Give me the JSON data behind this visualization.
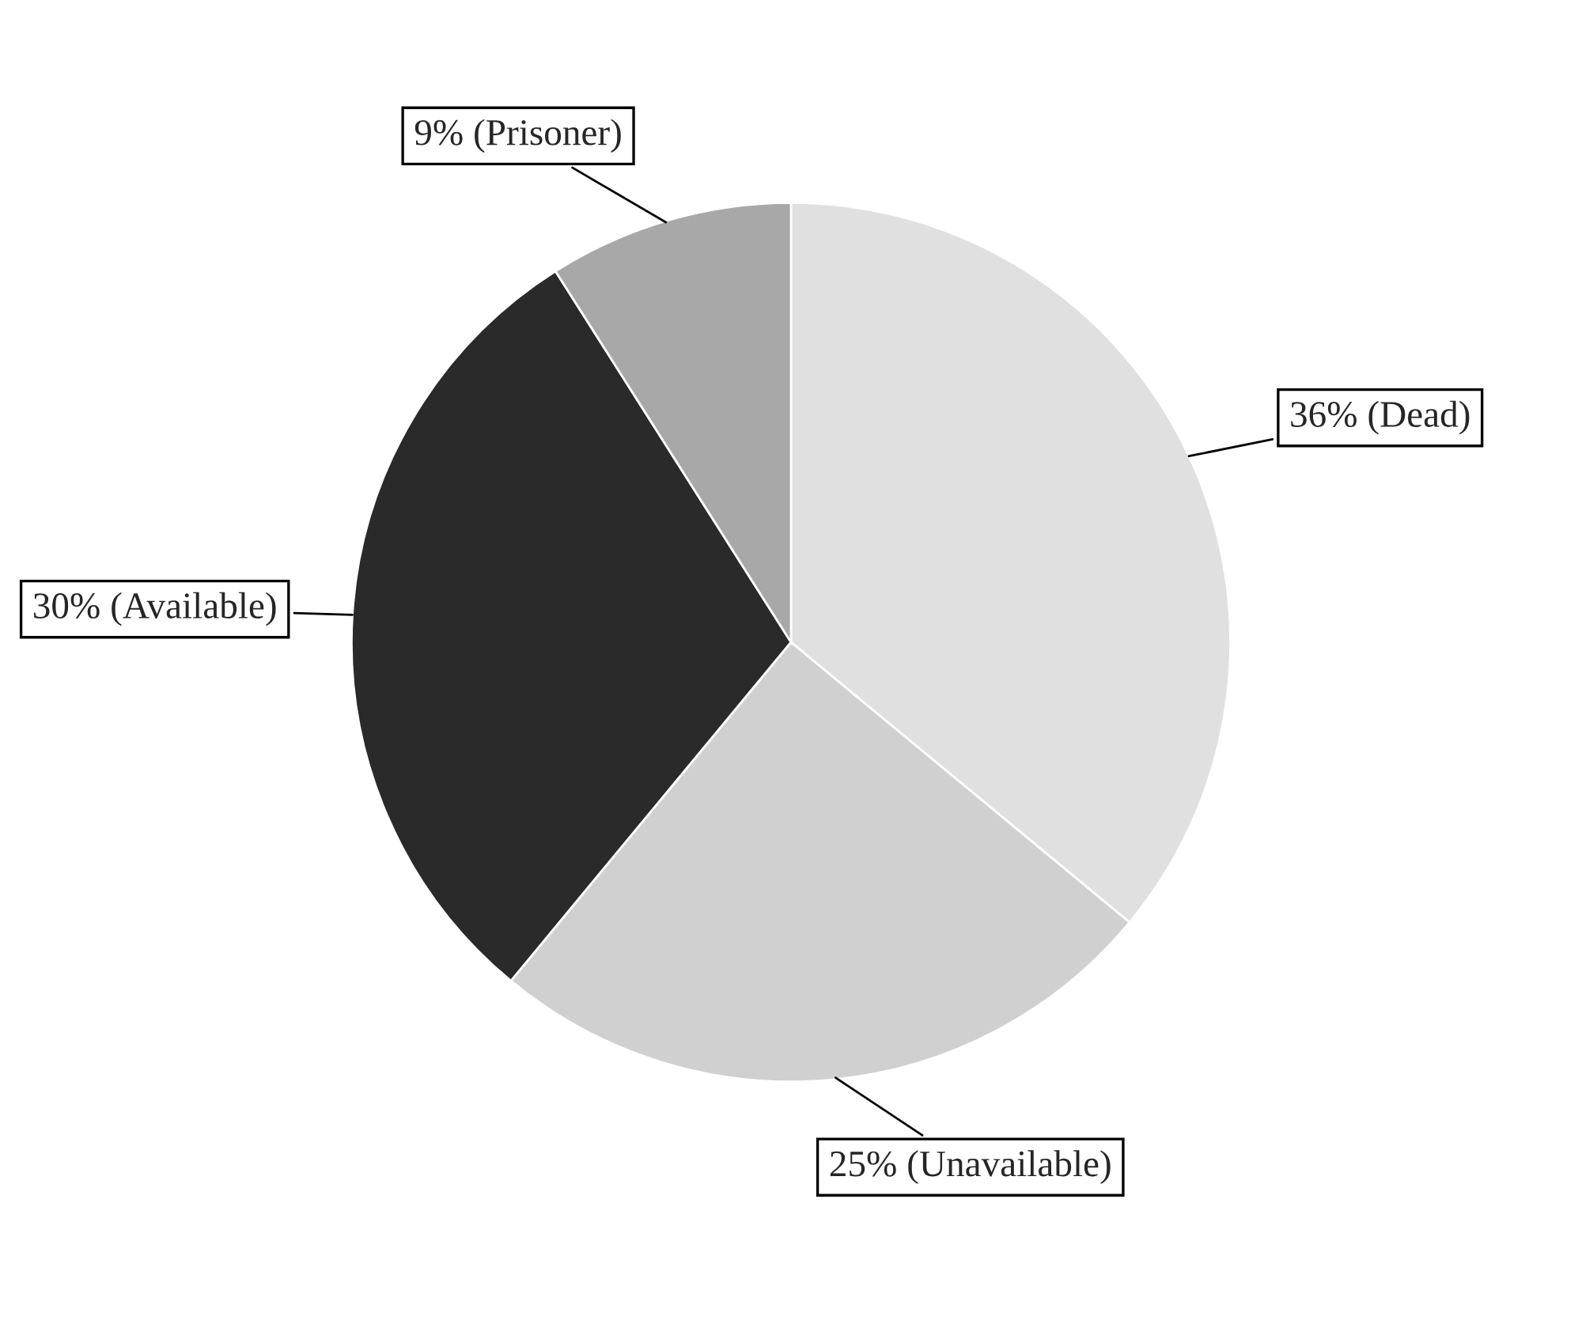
{
  "chart_data": {
    "type": "pie",
    "categories": [
      "(Dead)",
      "(Unavailable)",
      "(Available)",
      "(Prisoner)"
    ],
    "values": [
      36,
      25,
      30,
      9
    ],
    "value_labels": [
      "36%",
      "25%",
      "30%",
      "9%"
    ],
    "colors": [
      "#e0e0e0",
      "#d0d0d0",
      "#2a2a2a",
      "#a8a8a8"
    ]
  }
}
